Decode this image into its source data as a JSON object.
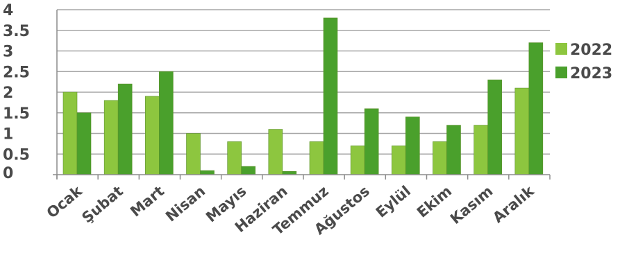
{
  "chart_data": {
    "type": "bar",
    "categories": [
      "Ocak",
      "Şubat",
      "Mart",
      "Nisan",
      "Mayıs",
      "Haziran",
      "Temmuz",
      "Ağustos",
      "Eylül",
      "Ekim",
      "Kasım",
      "Aralık"
    ],
    "series": [
      {
        "name": "2022",
        "color": "#8dc63f",
        "values": [
          2.0,
          1.8,
          1.9,
          1.0,
          0.8,
          1.1,
          0.8,
          0.7,
          0.7,
          0.8,
          1.2,
          2.1
        ]
      },
      {
        "name": "2023",
        "color": "#4aa02c",
        "values": [
          1.5,
          2.2,
          2.5,
          0.1,
          0.2,
          0.08,
          3.8,
          1.6,
          1.4,
          1.2,
          2.3,
          3.2
        ]
      }
    ],
    "yticks": [
      "0",
      "0.5",
      "1",
      "1.5",
      "2",
      "2.5",
      "3",
      "3.5",
      "4"
    ],
    "ylim": [
      0,
      4
    ],
    "grid": true,
    "legend": "right"
  }
}
